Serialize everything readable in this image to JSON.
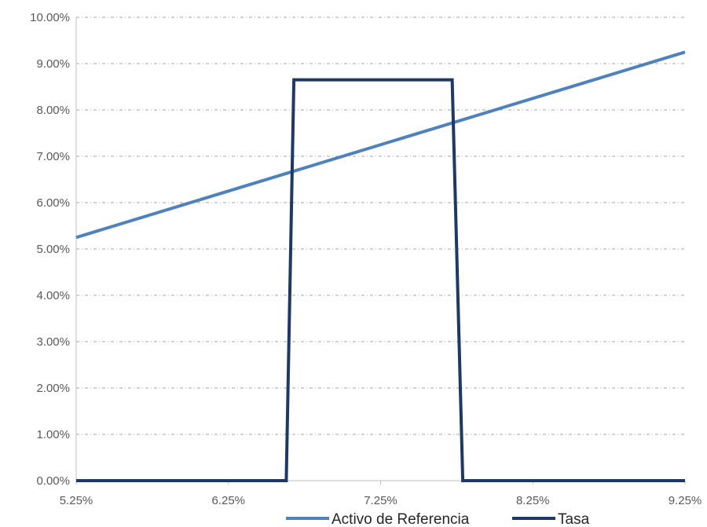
{
  "chart_data": {
    "type": "line",
    "title": "",
    "xlabel": "",
    "ylabel": "",
    "xlim": [
      5.25,
      9.25
    ],
    "ylim": [
      0,
      10
    ],
    "x_ticks": [
      "5.25%",
      "6.25%",
      "7.25%",
      "8.25%",
      "9.25%"
    ],
    "y_ticks": [
      "0.00%",
      "1.00%",
      "2.00%",
      "3.00%",
      "4.00%",
      "5.00%",
      "6.00%",
      "7.00%",
      "8.00%",
      "9.00%",
      "10.00%"
    ],
    "grid": "horizontal dashed",
    "legend_position": "bottom",
    "series": [
      {
        "name": "Activo de Referencia",
        "color": "#4F81BD",
        "x": [
          5.25,
          9.25
        ],
        "y": [
          5.25,
          9.25
        ]
      },
      {
        "name": "Tasa",
        "color": "#1F3864",
        "x": [
          5.25,
          6.63,
          6.68,
          7.72,
          7.79,
          9.25
        ],
        "y": [
          0,
          0,
          8.65,
          8.65,
          0,
          0
        ]
      }
    ]
  }
}
